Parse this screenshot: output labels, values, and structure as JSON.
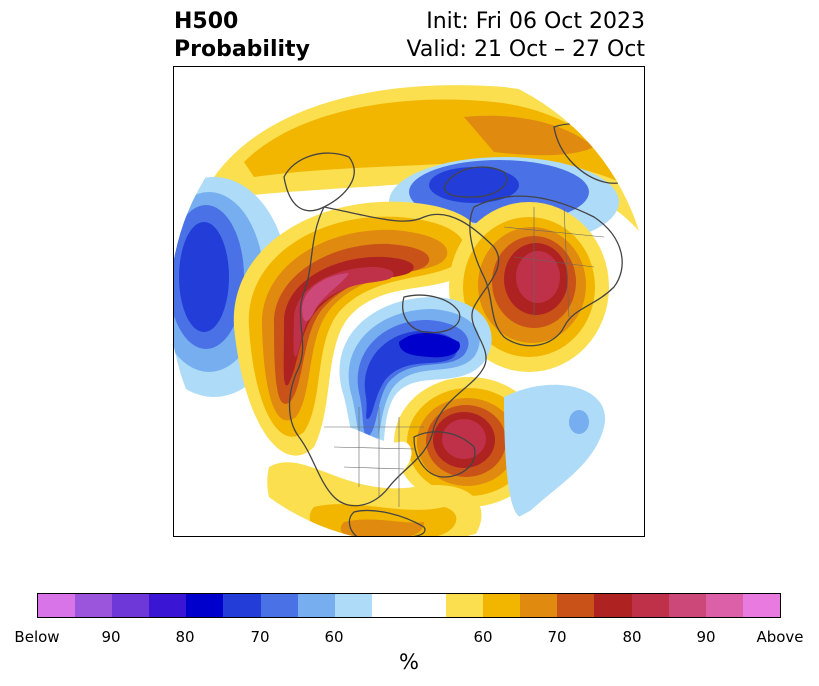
{
  "title": {
    "left_line1": "H500",
    "left_line2": "Probability",
    "right_line1": "Init: Fri 06 Oct 2023",
    "right_line2": "Valid: 21 Oct – 27 Oct"
  },
  "colorbar": {
    "segments": [
      "#d873e8",
      "#9b55dc",
      "#6e38d8",
      "#3b15d4",
      "#0000cc",
      "#233ed8",
      "#4a72e6",
      "#76aef0",
      "#aedcf8",
      "#ffffff",
      "#ffffff",
      "#fbdf4e",
      "#f2b600",
      "#e08a10",
      "#c95218",
      "#ae2222",
      "#bf3148",
      "#cc4878",
      "#dc60a8",
      "#e87ae0"
    ],
    "tick_labels": [
      "Below",
      "90",
      "80",
      "70",
      "60",
      "60",
      "70",
      "80",
      "90",
      "Above"
    ],
    "unit": "%"
  },
  "map": {
    "projection": "north-polar-stereographic",
    "colors": {
      "coast": "#444444",
      "blue_light": "#aedcf8",
      "blue2": "#76aef0",
      "blue3": "#4a72e6",
      "blue4": "#233ed8",
      "blue5": "#0000cc",
      "yellow": "#fbdf4e",
      "gold": "#f2b600",
      "orange": "#e08a10",
      "dark_orange": "#c95218",
      "red": "#ae2222",
      "crimson": "#bf3148",
      "pink": "#cc4878"
    }
  }
}
